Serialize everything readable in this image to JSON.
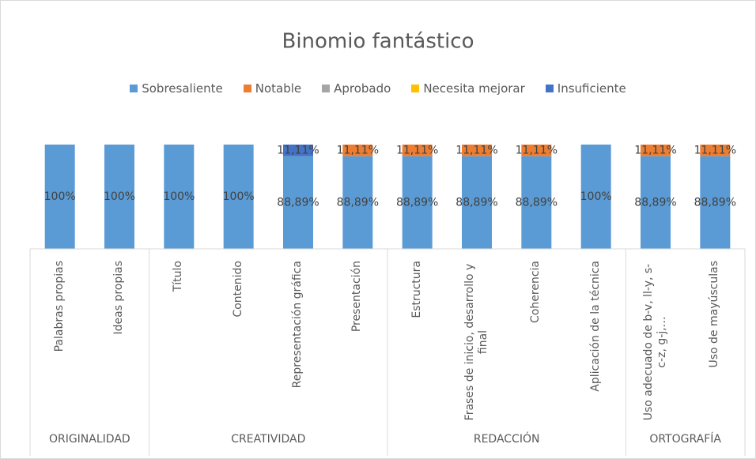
{
  "chart_data": {
    "type": "stacked_bar",
    "title": "Binomio fantástico",
    "categories": [
      "Palabras propias",
      "Ideas propias",
      "Título",
      "Contenido",
      "Representación gráfica",
      "Presentación",
      "Estructura",
      "Frases de inicio, desarrollo y final",
      "Coherencia",
      "Aplicación de la técnica",
      "Uso adecuado de b-v, ll-y, s-c-z, g-j,…",
      "Uso de mayúsculas"
    ],
    "groups": [
      {
        "label": "ORIGINALIDAD",
        "count": 2
      },
      {
        "label": "CREATIVIDAD",
        "count": 4
      },
      {
        "label": "REDACCIÓN",
        "count": 4
      },
      {
        "label": "ORTOGRAFÍA",
        "count": 2
      }
    ],
    "series": [
      {
        "name": "Sobresaliente",
        "color": "#5b9bd5",
        "values": [
          100,
          100,
          100,
          100,
          88.89,
          88.89,
          88.89,
          88.89,
          88.89,
          100,
          88.89,
          88.89
        ],
        "value_labels": [
          "100%",
          "100%",
          "100%",
          "100%",
          "88,89%",
          "88,89%",
          "88,89%",
          "88,89%",
          "88,89%",
          "100%",
          "88,89%",
          "88,89%"
        ]
      },
      {
        "name": "Notable",
        "color": "#ed7d31",
        "values": [
          0,
          0,
          0,
          0,
          0,
          11.11,
          11.11,
          11.11,
          11.11,
          0,
          11.11,
          11.11
        ],
        "value_labels": [
          null,
          null,
          null,
          null,
          null,
          "11,11%",
          "11,11%",
          "11,11%",
          "11,11%",
          null,
          "11,11%",
          "11,11%"
        ]
      },
      {
        "name": "Aprobado",
        "color": "#a5a5a5",
        "values": [
          0,
          0,
          0,
          0,
          0,
          0,
          0,
          0,
          0,
          0,
          0,
          0
        ]
      },
      {
        "name": "Necesita mejorar",
        "color": "#ffc000",
        "values": [
          0,
          0,
          0,
          0,
          0,
          0,
          0,
          0,
          0,
          0,
          0,
          0
        ]
      },
      {
        "name": "Insuficiente",
        "color": "#4472c4",
        "values": [
          0,
          0,
          0,
          0,
          11.11,
          0,
          0,
          0,
          0,
          0,
          0,
          0
        ],
        "value_labels": [
          null,
          null,
          null,
          null,
          "11,11%",
          null,
          null,
          null,
          null,
          null,
          null,
          null
        ]
      }
    ],
    "ylim": [
      0,
      100
    ],
    "legend": "top"
  }
}
